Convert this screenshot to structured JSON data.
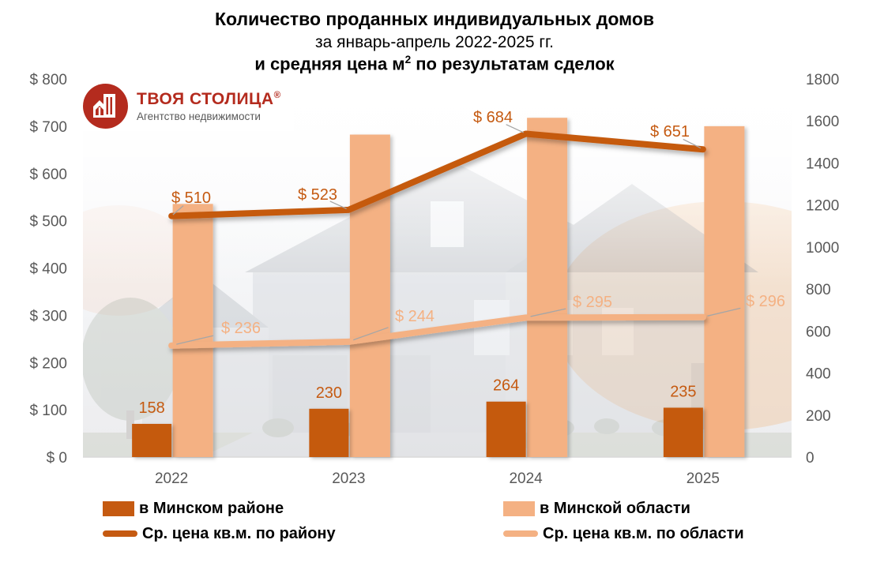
{
  "title": {
    "line1": "Количество проданных индивидуальных домов",
    "line2": "за январь-апрель 2022-2025 гг.",
    "line3_pre": "и средняя цена м",
    "line3_sup": "2",
    "line3_post": " по результатам сделок"
  },
  "logo": {
    "name": "ТВОЯ СТОЛИЦА",
    "reg_mark": "®",
    "subtitle": "Агентство недвижимости",
    "brand_color": "#B42B1E"
  },
  "chart_data": {
    "type": "combo-bar-line",
    "categories": [
      "2022",
      "2023",
      "2024",
      "2025"
    ],
    "bar_series": [
      {
        "name": "в Минском районе",
        "color": "#C55A11",
        "axis": "right",
        "values": [
          158,
          230,
          264,
          235
        ],
        "data_labels": [
          "158",
          "230",
          "264",
          "235"
        ]
      },
      {
        "name": "в Минской области",
        "color": "#F4B183",
        "axis": "right",
        "values": [
          1205,
          1535,
          1615,
          1575
        ],
        "values_estimated_from_axis": true,
        "data_labels": []
      }
    ],
    "line_series": [
      {
        "name": "Ср. цена кв.м. по району",
        "color": "#C55A11",
        "axis": "left",
        "values": [
          510,
          523,
          684,
          651
        ],
        "data_labels": [
          "$ 510",
          "$ 523",
          "$ 684",
          "$ 651"
        ]
      },
      {
        "name": "Ср. цена кв.м. по области",
        "color": "#F4B183",
        "axis": "left",
        "values": [
          236,
          244,
          295,
          296
        ],
        "data_labels": [
          "$ 236",
          "$ 244",
          "$ 295",
          "$ 296"
        ]
      }
    ],
    "left_axis": {
      "min": 0,
      "max": 800,
      "step": 100,
      "labels": [
        "$ 0",
        "$ 100",
        "$ 200",
        "$ 300",
        "$ 400",
        "$ 500",
        "$ 600",
        "$ 700",
        "$ 800"
      ]
    },
    "right_axis": {
      "min": 0,
      "max": 1800,
      "step": 200,
      "labels": [
        "0",
        "200",
        "400",
        "600",
        "800",
        "1000",
        "1200",
        "1400",
        "1600",
        "1800"
      ]
    },
    "grid": false,
    "legend_position": "bottom"
  },
  "legend": {
    "items": [
      {
        "label": "в Минском районе",
        "swatch": "bar",
        "color": "#C55A11"
      },
      {
        "label": "Ср. цена кв.м. по району",
        "swatch": "line",
        "color": "#C55A11"
      },
      {
        "label": "в Минской области",
        "swatch": "bar",
        "color": "#F4B183"
      },
      {
        "label": "Ср. цена кв.м. по области",
        "swatch": "line",
        "color": "#F4B183"
      }
    ]
  },
  "colors": {
    "accent_dark": "#C55A11",
    "accent_light": "#F4B183",
    "axis_text": "#595959",
    "leader_line": "#A6A6A6",
    "baseline": "#D9D9D9",
    "title_text": "#000000"
  }
}
